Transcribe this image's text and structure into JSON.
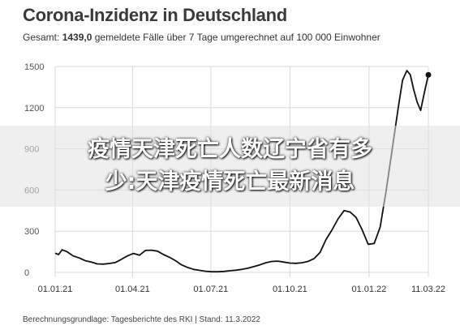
{
  "header": {
    "title": "Corona-Inzidenz in Deutschland",
    "subtitle_prefix": "Gesamt: ",
    "subtitle_value": "1439,0",
    "subtitle_suffix": " gemeldete Fälle über 7 Tage umgerechnet auf 100 000 Einwohner"
  },
  "footer": {
    "source": "Berechnungsgrundlage: Tagesberichte des RKI | Stand: 11.3.2022"
  },
  "overlay": {
    "line1": "疫情天津死亡人数辽宁省有多",
    "line2": "少:天津疫情死亡最新消息"
  },
  "colors": {
    "line": "#111111",
    "grid": "#d9d9d9",
    "overlay": "#e1e1e1"
  },
  "chart_data": {
    "type": "line",
    "x_tick_labels": [
      "01.01.21",
      "01.04.21",
      "01.07.21",
      "01.10.21",
      "01.01.22",
      "11.03.22"
    ],
    "y_ticks": [
      0,
      300,
      600,
      900,
      1200,
      1500
    ],
    "ylim": [
      0,
      1500
    ],
    "grid": true,
    "series": [
      {
        "x": [
          "2021-01-01",
          "2021-01-05",
          "2021-01-09",
          "2021-01-15",
          "2021-01-22",
          "2021-01-29",
          "2021-02-05",
          "2021-02-12",
          "2021-02-19",
          "2021-02-26",
          "2021-03-05",
          "2021-03-12",
          "2021-03-19",
          "2021-03-26",
          "2021-04-02",
          "2021-04-09",
          "2021-04-16",
          "2021-04-23",
          "2021-04-30",
          "2021-05-07",
          "2021-05-14",
          "2021-05-21",
          "2021-05-28",
          "2021-06-04",
          "2021-06-11",
          "2021-06-18",
          "2021-06-25",
          "2021-07-02",
          "2021-07-09",
          "2021-07-16",
          "2021-07-23",
          "2021-07-30",
          "2021-08-06",
          "2021-08-13",
          "2021-08-20",
          "2021-08-27",
          "2021-09-03",
          "2021-09-10",
          "2021-09-17",
          "2021-09-24",
          "2021-10-01",
          "2021-10-08",
          "2021-10-15",
          "2021-10-22",
          "2021-10-29",
          "2021-11-05",
          "2021-11-12",
          "2021-11-19",
          "2021-11-26",
          "2021-12-03",
          "2021-12-10",
          "2021-12-17",
          "2021-12-24",
          "2021-12-31",
          "2022-01-07",
          "2022-01-14",
          "2022-01-21",
          "2022-01-28",
          "2022-02-04",
          "2022-02-09",
          "2022-02-14",
          "2022-02-18",
          "2022-02-22",
          "2022-02-26",
          "2022-03-02",
          "2022-03-06",
          "2022-03-11"
        ],
        "y": [
          140,
          130,
          165,
          150,
          120,
          105,
          85,
          75,
          62,
          60,
          65,
          72,
          95,
          120,
          138,
          125,
          160,
          162,
          155,
          130,
          110,
          85,
          55,
          36,
          22,
          15,
          8,
          5,
          5,
          7,
          12,
          16,
          22,
          30,
          42,
          55,
          70,
          80,
          82,
          75,
          68,
          66,
          70,
          80,
          100,
          145,
          240,
          310,
          390,
          450,
          440,
          400,
          310,
          205,
          210,
          330,
          600,
          900,
          1200,
          1400,
          1470,
          1440,
          1330,
          1240,
          1180,
          1300,
          1439
        ]
      }
    ]
  }
}
